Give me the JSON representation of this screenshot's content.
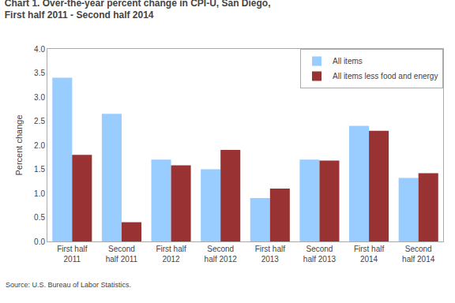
{
  "chart_data": {
    "type": "bar",
    "title": "Chart 1. Over-the-year percent change in CPI-U, San Diego,",
    "subtitle": "First half 2011 - Second half 2014",
    "categories": [
      "First half\n2011",
      "Second\nhalf 2011",
      "First half\n2012",
      "Second\nhalf 2012",
      "First half\n2013",
      "Second\nhalf 2013",
      "First half\n2014",
      "Second\nhalf 2014"
    ],
    "series": [
      {
        "name": "All items",
        "color": "#99ccff",
        "values": [
          3.4,
          2.65,
          1.7,
          1.5,
          0.9,
          1.7,
          2.4,
          1.32
        ]
      },
      {
        "name": "All items less food and energy",
        "color": "#993333",
        "values": [
          1.8,
          0.4,
          1.58,
          1.9,
          1.1,
          1.68,
          2.3,
          1.42
        ]
      }
    ],
    "ylabel": "Percent change",
    "ylim": [
      0.0,
      4.0
    ],
    "yticks": [
      {
        "value": 0,
        "label": "0.0"
      },
      0.5,
      {
        "value": 1,
        "label": "1.0"
      },
      1.5,
      {
        "value": 2,
        "label": "2.0"
      },
      2.5,
      {
        "value": 3,
        "label": "3.0"
      },
      3.5,
      {
        "value": 4,
        "label": "4.0"
      }
    ],
    "grid": false,
    "legend": "upper right",
    "annotations": [
      "Source: U.S. Bureau of Labor Statistics."
    ]
  }
}
